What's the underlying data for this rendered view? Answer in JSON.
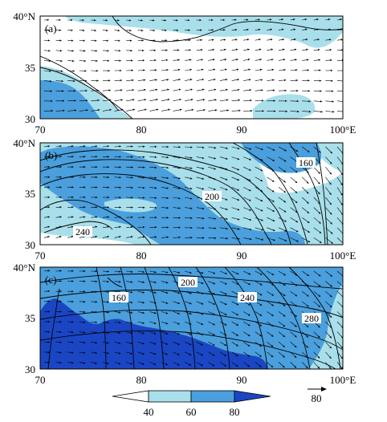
{
  "figure": {
    "panels": [
      {
        "label": "(a)",
        "y_ticks": [
          "40°N",
          "35",
          "30"
        ],
        "x_ticks": [
          "70",
          "80",
          "90",
          "100°E"
        ],
        "contour_labels": []
      },
      {
        "label": "(b)",
        "y_ticks": [
          "40°N",
          "35",
          "30"
        ],
        "x_ticks": [
          "70",
          "80",
          "90",
          "100°E"
        ],
        "contour_labels": [
          "160",
          "200",
          "240"
        ]
      },
      {
        "label": "(c)",
        "y_ticks": [
          "40°N",
          "35",
          "30"
        ],
        "x_ticks": [
          "70",
          "80",
          "90",
          "100°E"
        ],
        "contour_labels": [
          "200",
          "160",
          "240",
          "280"
        ]
      }
    ],
    "colorbar": {
      "labels": [
        "40",
        "60",
        "80"
      ]
    },
    "reference_vector": {
      "label": "80"
    }
  },
  "colors": {
    "light": "#a8dfea",
    "medium": "#4a9fdc",
    "dark": "#1a46c4",
    "line": "#000000"
  },
  "chart_data": {
    "type": "heatmap",
    "x_range": [
      70,
      100
    ],
    "y_range": [
      30,
      40
    ],
    "shading_levels": [
      40,
      60,
      80
    ]
  }
}
